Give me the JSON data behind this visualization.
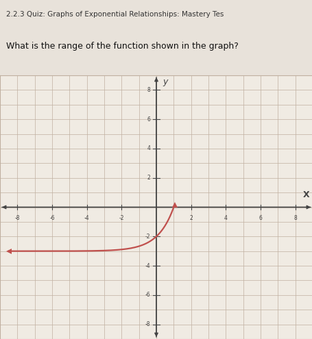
{
  "title_line1": "2.2.3 Quiz:",
  "title_line2": "Graphs of Exponential Relationships: Mastery Test",
  "question": "What is the range of the function shown in the graph?",
  "fig_bg_color": "#e8e2da",
  "plot_bg_color": "#f0ebe3",
  "grid_color": "#c0b0a0",
  "axis_color": "#444444",
  "curve_color": "#c0504d",
  "marker_color": "#c0504d",
  "xlim": [
    -9,
    9
  ],
  "ylim": [
    -9,
    9
  ],
  "xticks": [
    -8,
    -6,
    -4,
    -2,
    2,
    4,
    6,
    8
  ],
  "yticks": [
    -8,
    -6,
    -4,
    -2,
    2,
    4,
    6,
    8
  ],
  "x_curve_start": -8.5,
  "x_curve_end": 1.05,
  "base": 3.0,
  "shift_y": -3.0,
  "marker_size": 6,
  "curve_lw": 1.6
}
